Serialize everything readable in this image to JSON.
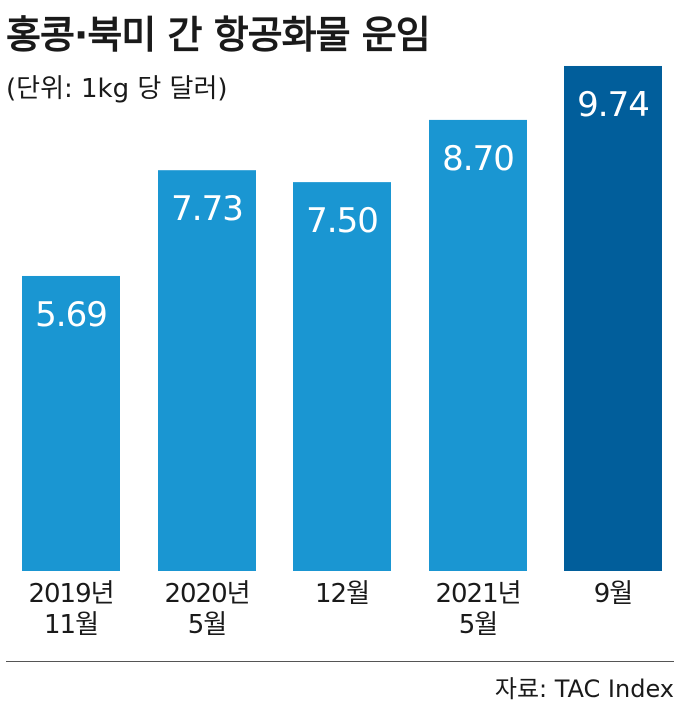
{
  "header": {
    "title": "홍콩·북미 간 항공화물 운임",
    "subtitle": "(단위: 1kg 당 달러)"
  },
  "footer": {
    "source": "자료: TAC Index"
  },
  "colors": {
    "bar": "#1a96d2",
    "bar_highlight": "#015e9b",
    "value_label": "#ffffff"
  },
  "chart_data": {
    "type": "bar",
    "title": "홍콩·북미 간 항공화물 운임",
    "subtitle": "(단위: 1kg 당 달러)",
    "categories": [
      [
        "2019년",
        "11월"
      ],
      [
        "2020년",
        "5월"
      ],
      [
        "12월"
      ],
      [
        "2021년",
        "5월"
      ],
      [
        "9월"
      ]
    ],
    "values": [
      5.69,
      7.73,
      7.5,
      8.7,
      9.74
    ],
    "value_labels": [
      "5.69",
      "7.73",
      "7.50",
      "8.70",
      "9.74"
    ],
    "highlight_index": 4,
    "xlabel": "",
    "ylabel": "",
    "grid": false,
    "legend": "none"
  }
}
